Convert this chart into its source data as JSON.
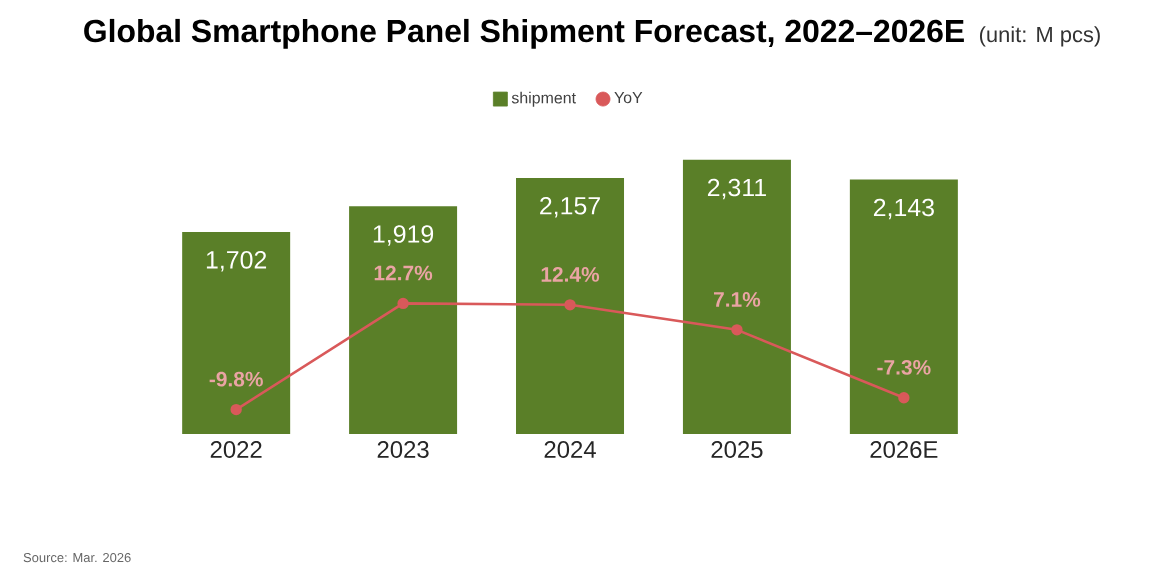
{
  "chart_data": {
    "type": "bar",
    "title": "Global Smartphone Panel Shipment Forecast, 2022–2026E",
    "subtitle": "(unit: M pcs)",
    "categories": [
      "2022",
      "2023",
      "2024",
      "2025",
      "2026E"
    ],
    "series": [
      {
        "name": "shipment",
        "color": "#5a7f28",
        "values": [
          1702,
          1919,
          2157,
          2311,
          2143
        ],
        "value_labels": [
          "1,702",
          "1,919",
          "2,157",
          "2,311",
          "2,143"
        ]
      },
      {
        "name": "YoY",
        "type": "line",
        "axis": "y2",
        "color": "#d9595a",
        "marker": "circle",
        "values": [
          -9.8,
          12.7,
          12.4,
          7.1,
          -7.3
        ],
        "value_labels": [
          "-9.8%",
          "12.7%",
          "12.4%",
          "7.1%",
          "-7.3%"
        ]
      }
    ],
    "tick_labels": "x",
    "legend": "top",
    "annotations": [
      "Source: Mar. 2026"
    ]
  }
}
